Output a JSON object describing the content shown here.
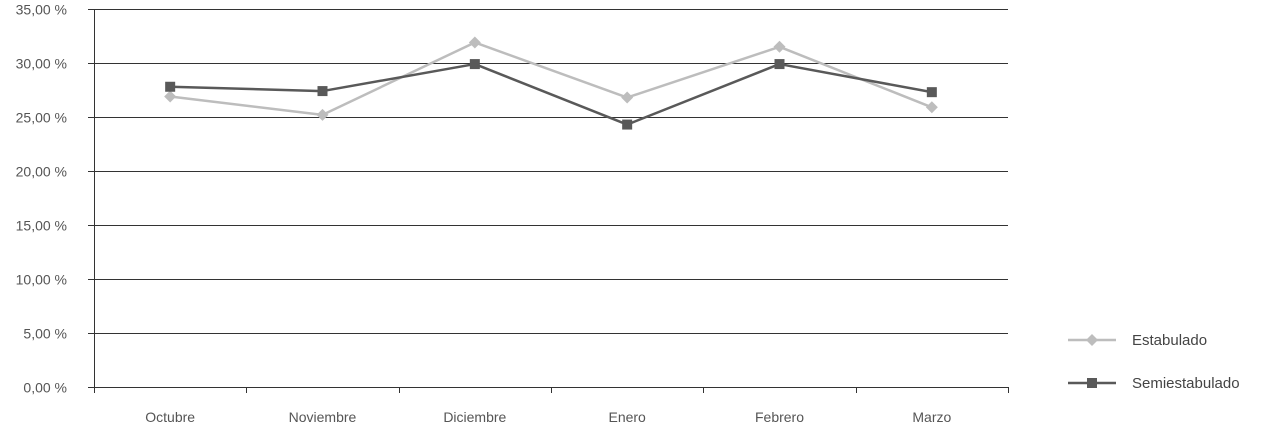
{
  "chart_data": {
    "type": "line",
    "title": "",
    "xlabel": "",
    "ylabel": "",
    "categories": [
      "Octubre",
      "Noviembre",
      "Diciembre",
      "Enero",
      "Febrero",
      "Marzo"
    ],
    "ylim": [
      0,
      35
    ],
    "y_ticks": [
      0,
      5,
      10,
      15,
      20,
      25,
      30,
      35
    ],
    "y_tick_labels": [
      "0,00 %",
      "5,00 %",
      "10,00 %",
      "15,00 %",
      "20,00 %",
      "25,00 %",
      "30,00 %",
      "35,00 %"
    ],
    "grid": true,
    "legend_position": "right",
    "series": [
      {
        "name": "Estabulado",
        "values": [
          26.9,
          25.2,
          31.9,
          26.8,
          31.5,
          25.9
        ],
        "color": "#bdbdbd",
        "marker": "diamond-icon"
      },
      {
        "name": "Semiestabulado",
        "values": [
          27.8,
          27.4,
          29.9,
          24.3,
          29.9,
          27.3
        ],
        "color": "#595959",
        "marker": "square-icon"
      }
    ]
  }
}
